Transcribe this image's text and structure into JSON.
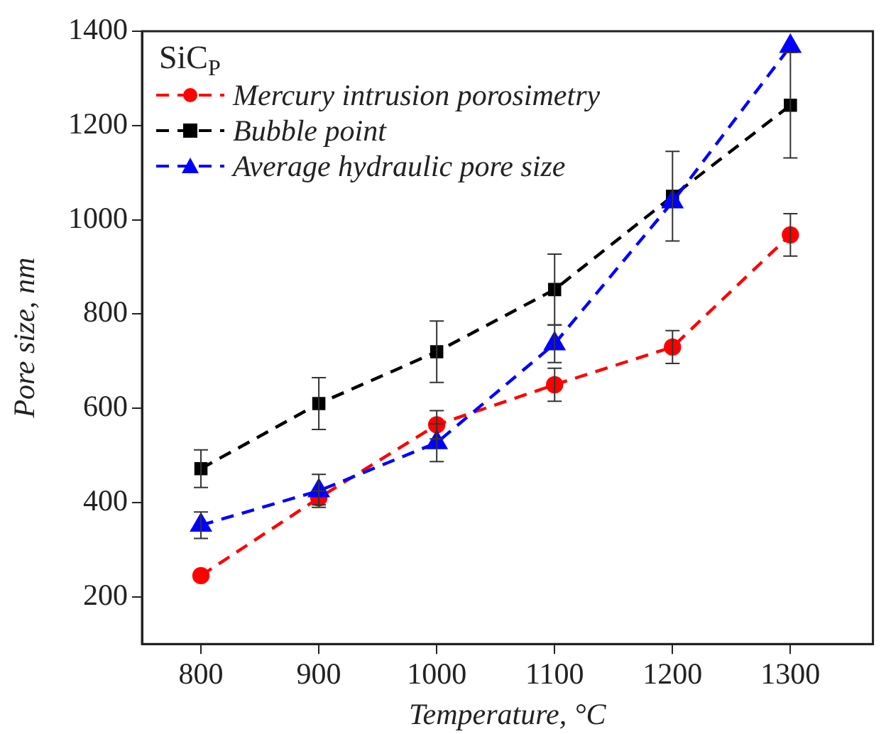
{
  "chart_data": {
    "type": "line",
    "xlabel": "Temperature, °C",
    "ylabel": "Pore size, nm",
    "legend_title": "SiC$_{P}$",
    "legend": "top left",
    "line_style": "dashed",
    "grid": false,
    "x": [
      800,
      900,
      1000,
      1100,
      1200,
      1300
    ],
    "xlim": [
      750,
      1370
    ],
    "xticks": [
      800,
      900,
      1000,
      1100,
      1200,
      1300
    ],
    "ylim": [
      100,
      1400
    ],
    "yticks": [
      200,
      400,
      600,
      800,
      1000,
      1200,
      1400
    ],
    "series": [
      {
        "name": "Mercury intrusion porosimetry",
        "color": "#ff0000",
        "marker": "circle",
        "values": [
          245,
          410,
          565,
          650,
          730,
          968
        ],
        "errors": [
          null,
          15,
          30,
          35,
          35,
          45
        ]
      },
      {
        "name": "Bubble point",
        "color": "#000000",
        "marker": "square",
        "values": [
          472,
          610,
          720,
          852,
          1050,
          1243
        ],
        "errors": [
          40,
          55,
          65,
          75,
          95,
          112
        ]
      },
      {
        "name": "Average hydraulic pore size",
        "color": "#0000ff",
        "marker": "triangle",
        "values": [
          352,
          425,
          527,
          737,
          1038,
          1368
        ],
        "errors": [
          28,
          35,
          40,
          40,
          null,
          null
        ]
      }
    ]
  }
}
